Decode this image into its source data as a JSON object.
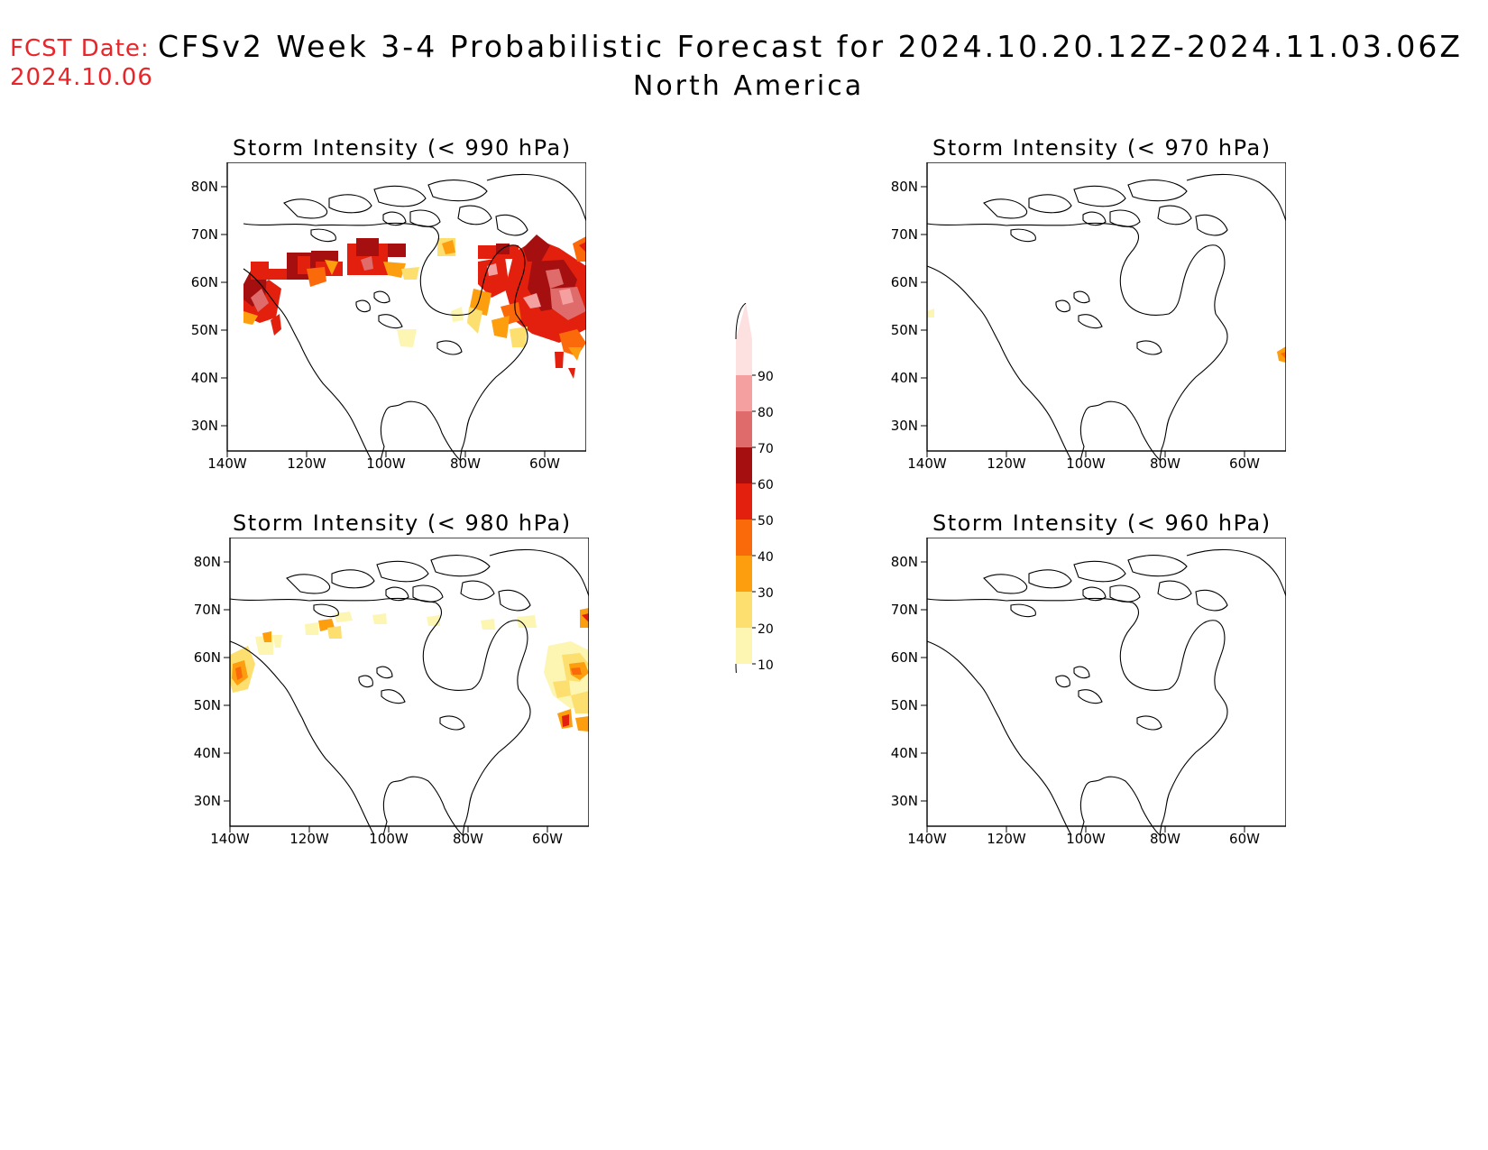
{
  "header": {
    "fcst_label": "FCST Date:",
    "fcst_date": "2024.10.06",
    "title": "CFSv2 Week 3-4 Probabilistic Forecast for 2024.10.20.12Z-2024.11.03.06Z",
    "region": "North America"
  },
  "panels": [
    {
      "title": "Storm Intensity (< 990 hPa)"
    },
    {
      "title": "Storm Intensity (< 970 hPa)"
    },
    {
      "title": "Storm Intensity (< 980 hPa)"
    },
    {
      "title": "Storm Intensity (< 960 hPa)"
    }
  ],
  "axes": {
    "lat_labels": [
      "80N",
      "70N",
      "60N",
      "50N",
      "40N",
      "30N"
    ],
    "lon_labels": [
      "140W",
      "120W",
      "100W",
      "80W",
      "60W"
    ]
  },
  "colorbar": {
    "levels": [
      "90",
      "80",
      "70",
      "60",
      "50",
      "40",
      "30",
      "20",
      "10"
    ],
    "colors": [
      "#fde0e0",
      "#f4a0a0",
      "#e06b6b",
      "#a50f0f",
      "#e3200e",
      "#fb6a0a",
      "#fd9e0e",
      "#fddf70",
      "#fdf6b2"
    ]
  }
}
